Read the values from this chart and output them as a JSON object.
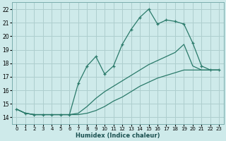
{
  "background_color": "#ceeaea",
  "grid_color": "#aecece",
  "line_color": "#2a7a6a",
  "xlabel": "Humidex (Indice chaleur)",
  "xlim": [
    -0.5,
    23.5
  ],
  "ylim": [
    13.5,
    22.5
  ],
  "xticks": [
    0,
    1,
    2,
    3,
    4,
    5,
    6,
    7,
    8,
    9,
    10,
    11,
    12,
    13,
    14,
    15,
    16,
    17,
    18,
    19,
    20,
    21,
    22,
    23
  ],
  "yticks": [
    14,
    15,
    16,
    17,
    18,
    19,
    20,
    21,
    22
  ],
  "series": [
    {
      "x": [
        0,
        1,
        2,
        3,
        4,
        5,
        6,
        7,
        8,
        9,
        10,
        11,
        12,
        13,
        14,
        15,
        16,
        17,
        18,
        19,
        20,
        21,
        22,
        23
      ],
      "y": [
        14.6,
        14.3,
        14.2,
        14.2,
        14.2,
        14.2,
        14.2,
        14.2,
        14.3,
        14.5,
        14.8,
        15.2,
        15.5,
        15.9,
        16.3,
        16.6,
        16.9,
        17.1,
        17.3,
        17.5,
        17.5,
        17.5,
        17.5,
        17.5
      ],
      "has_markers": false
    },
    {
      "x": [
        0,
        1,
        2,
        3,
        4,
        5,
        6,
        7,
        8,
        9,
        10,
        11,
        12,
        13,
        14,
        15,
        16,
        17,
        18,
        19,
        20,
        21,
        22,
        23
      ],
      "y": [
        14.6,
        14.3,
        14.2,
        14.2,
        14.2,
        14.2,
        14.2,
        14.3,
        14.8,
        15.4,
        15.9,
        16.3,
        16.7,
        17.1,
        17.5,
        17.9,
        18.2,
        18.5,
        18.8,
        19.4,
        17.8,
        17.5,
        17.5,
        17.5
      ],
      "has_markers": false
    },
    {
      "x": [
        0,
        1,
        2,
        3,
        4,
        5,
        6,
        7,
        8,
        9,
        10,
        11,
        12,
        13,
        14,
        15,
        16,
        17,
        18,
        19,
        20,
        21,
        22,
        23
      ],
      "y": [
        14.6,
        14.3,
        14.2,
        14.2,
        14.2,
        14.2,
        14.2,
        16.5,
        17.8,
        18.5,
        17.2,
        17.8,
        19.4,
        20.5,
        21.4,
        22.0,
        20.9,
        21.2,
        21.1,
        20.9,
        19.5,
        17.8,
        17.5,
        17.5
      ],
      "has_markers": true
    }
  ]
}
